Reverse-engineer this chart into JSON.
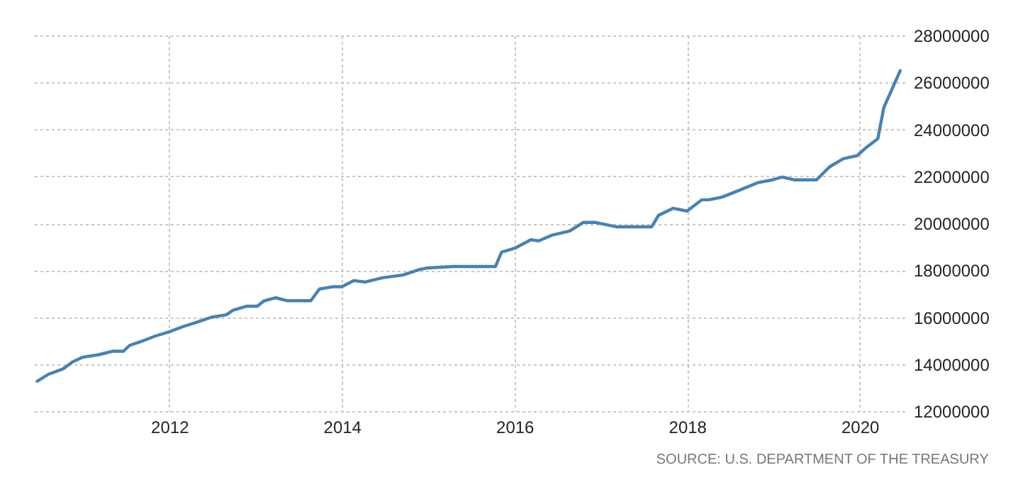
{
  "chart_data": {
    "type": "line",
    "annotations": [
      "SOURCE: U.S. DEPARTMENT OF THE TREASURY"
    ],
    "x": [
      2010.47,
      2010.6,
      2010.77,
      2010.88,
      2011.0,
      2011.18,
      2011.34,
      2011.47,
      2011.54,
      2011.67,
      2011.84,
      2012.0,
      2012.16,
      2012.33,
      2012.49,
      2012.66,
      2012.74,
      2012.9,
      2013.02,
      2013.1,
      2013.23,
      2013.37,
      2013.64,
      2013.74,
      2013.9,
      2014.0,
      2014.14,
      2014.27,
      2014.47,
      2014.71,
      2014.91,
      2015.0,
      2015.29,
      2015.78,
      2015.85,
      2016.01,
      2016.19,
      2016.28,
      2016.44,
      2016.64,
      2016.8,
      2016.93,
      2017.18,
      2017.59,
      2017.67,
      2017.84,
      2018.0,
      2018.17,
      2018.25,
      2018.41,
      2018.58,
      2018.82,
      2018.99,
      2019.1,
      2019.24,
      2019.5,
      2019.65,
      2019.81,
      2019.97,
      2020.08,
      2020.21,
      2020.28,
      2020.47
    ],
    "series": [
      {
        "color": "#4682b4",
        "values": [
          13270000,
          13570000,
          13800000,
          14100000,
          14300000,
          14400000,
          14550000,
          14550000,
          14800000,
          14960000,
          15200000,
          15380000,
          15600000,
          15800000,
          16000000,
          16100000,
          16300000,
          16470000,
          16470000,
          16700000,
          16830000,
          16700000,
          16700000,
          17200000,
          17300000,
          17300000,
          17560000,
          17500000,
          17680000,
          17800000,
          18040000,
          18100000,
          18160000,
          18160000,
          18770000,
          18950000,
          19300000,
          19250000,
          19500000,
          19670000,
          20040000,
          20040000,
          19850000,
          19850000,
          20340000,
          20640000,
          20520000,
          21000000,
          21000000,
          21120000,
          21370000,
          21730000,
          21850000,
          21970000,
          21850000,
          21850000,
          22400000,
          22750000,
          22880000,
          23240000,
          23600000,
          24930000,
          26500000
        ]
      }
    ],
    "xlim": [
      2010.4,
      2020.52
    ],
    "xticks": [
      2012,
      2014,
      2016,
      2018,
      2020
    ],
    "ylim": [
      12000000,
      28000000
    ],
    "yticks": [
      12000000,
      14000000,
      16000000,
      18000000,
      20000000,
      22000000,
      24000000,
      26000000,
      28000000
    ],
    "grid": true,
    "line_style": "solid"
  }
}
